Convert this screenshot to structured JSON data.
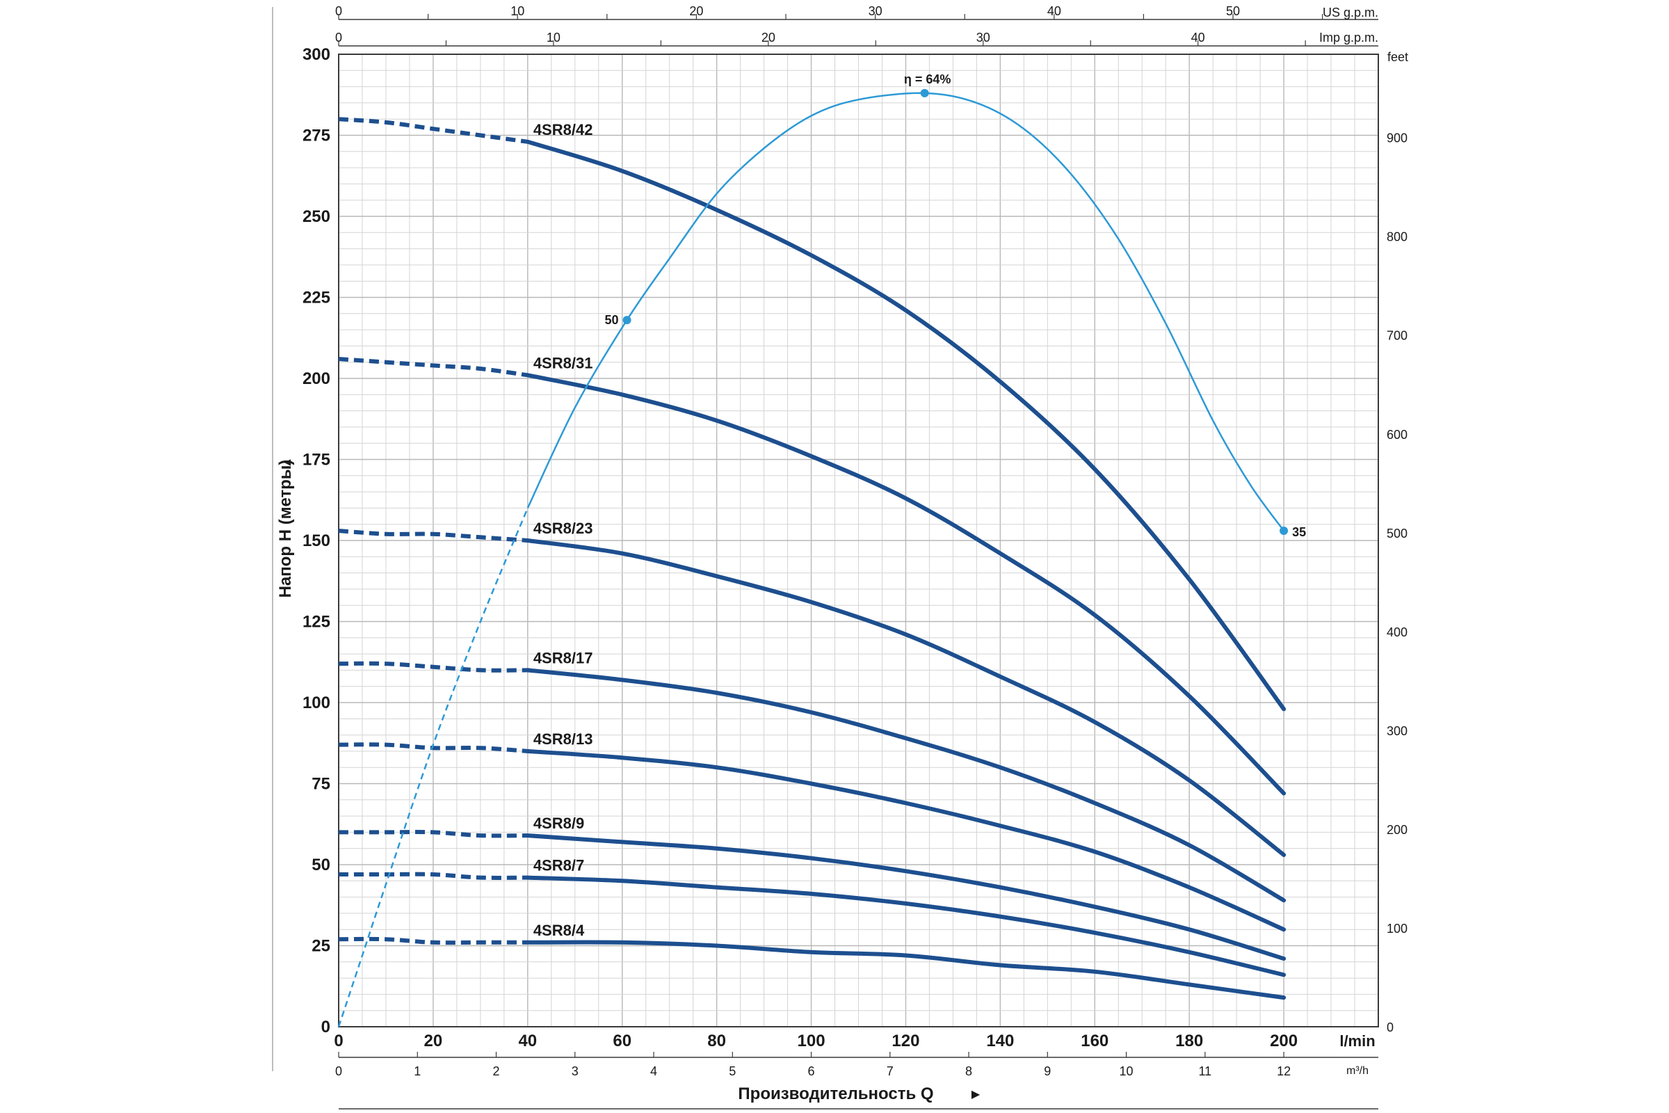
{
  "chart_data": {
    "type": "line",
    "title": "",
    "ylabel": "Напор H (метры)",
    "ylabel_arrow": "▲",
    "xlabel": "Производительность Q",
    "xlabel_arrow": "▶",
    "x_unit_main": "l/min",
    "x_unit_m3h": "m³/h",
    "x_unit_us": "US g.p.m.",
    "x_unit_imp": "Imp g.p.m.",
    "y_unit_feet": "feet",
    "xlim": [
      0,
      220
    ],
    "ylim": [
      0,
      300
    ],
    "grid": true,
    "x_ticks": [
      0,
      20,
      40,
      60,
      80,
      100,
      120,
      140,
      160,
      180,
      200
    ],
    "y_ticks": [
      0,
      25,
      50,
      75,
      100,
      125,
      150,
      175,
      200,
      225,
      250,
      275,
      300
    ],
    "m3h_ticks": [
      0,
      1,
      2,
      3,
      4,
      5,
      6,
      7,
      8,
      9,
      10,
      11,
      12
    ],
    "us_ticks": [
      0,
      10,
      20,
      30,
      40,
      50
    ],
    "imp_ticks": [
      0,
      10,
      20,
      30,
      40
    ],
    "feet_ticks": [
      0,
      100,
      200,
      300,
      400,
      500,
      600,
      700,
      800,
      900
    ],
    "curve_x": [
      0,
      10,
      20,
      30,
      40,
      60,
      80,
      100,
      120,
      140,
      160,
      180,
      200
    ],
    "series": [
      {
        "name": "4SR8/42",
        "values": [
          280,
          279,
          277,
          275,
          273,
          264,
          252,
          238,
          221,
          199,
          172,
          138,
          98
        ]
      },
      {
        "name": "4SR8/31",
        "values": [
          206,
          205,
          204,
          203,
          201,
          195,
          187,
          176,
          163,
          146,
          127,
          102,
          72
        ]
      },
      {
        "name": "4SR8/23",
        "values": [
          153,
          152,
          152,
          151,
          150,
          146,
          139,
          131,
          121,
          108,
          94,
          76,
          53
        ]
      },
      {
        "name": "4SR8/17",
        "values": [
          112,
          112,
          111,
          110,
          110,
          107,
          103,
          97,
          89,
          80,
          69,
          56,
          39
        ]
      },
      {
        "name": "4SR8/13",
        "values": [
          87,
          87,
          86,
          86,
          85,
          83,
          80,
          75,
          69,
          62,
          54,
          43,
          30
        ]
      },
      {
        "name": "4SR8/9",
        "values": [
          60,
          60,
          60,
          59,
          59,
          57,
          55,
          52,
          48,
          43,
          37,
          30,
          21
        ]
      },
      {
        "name": "4SR8/7",
        "values": [
          47,
          47,
          47,
          46,
          46,
          45,
          43,
          41,
          38,
          34,
          29,
          23,
          16
        ]
      },
      {
        "name": "4SR8/4",
        "values": [
          27,
          27,
          26,
          26,
          26,
          26,
          25,
          23,
          22,
          19,
          17,
          13,
          9
        ]
      }
    ],
    "efficiency": {
      "x": [
        0,
        5,
        10,
        20,
        30,
        40,
        50,
        61,
        70,
        80,
        90,
        100,
        110,
        124,
        135,
        145,
        155,
        165,
        175,
        185,
        193,
        200
      ],
      "y": [
        0,
        22,
        44,
        87,
        125,
        160,
        191,
        218,
        237,
        257,
        271,
        281,
        286,
        288,
        285,
        277,
        263,
        243,
        217,
        187,
        167,
        153
      ],
      "dashed_until_x": 40,
      "markers": [
        {
          "x": 61,
          "y": 218,
          "label": "50"
        },
        {
          "x": 124,
          "y": 288,
          "label": "η = 64%"
        },
        {
          "x": 200,
          "y": 153,
          "label": "35"
        }
      ]
    },
    "line_color": "#1d4f8f",
    "efficiency_color": "#2d9ad6"
  }
}
